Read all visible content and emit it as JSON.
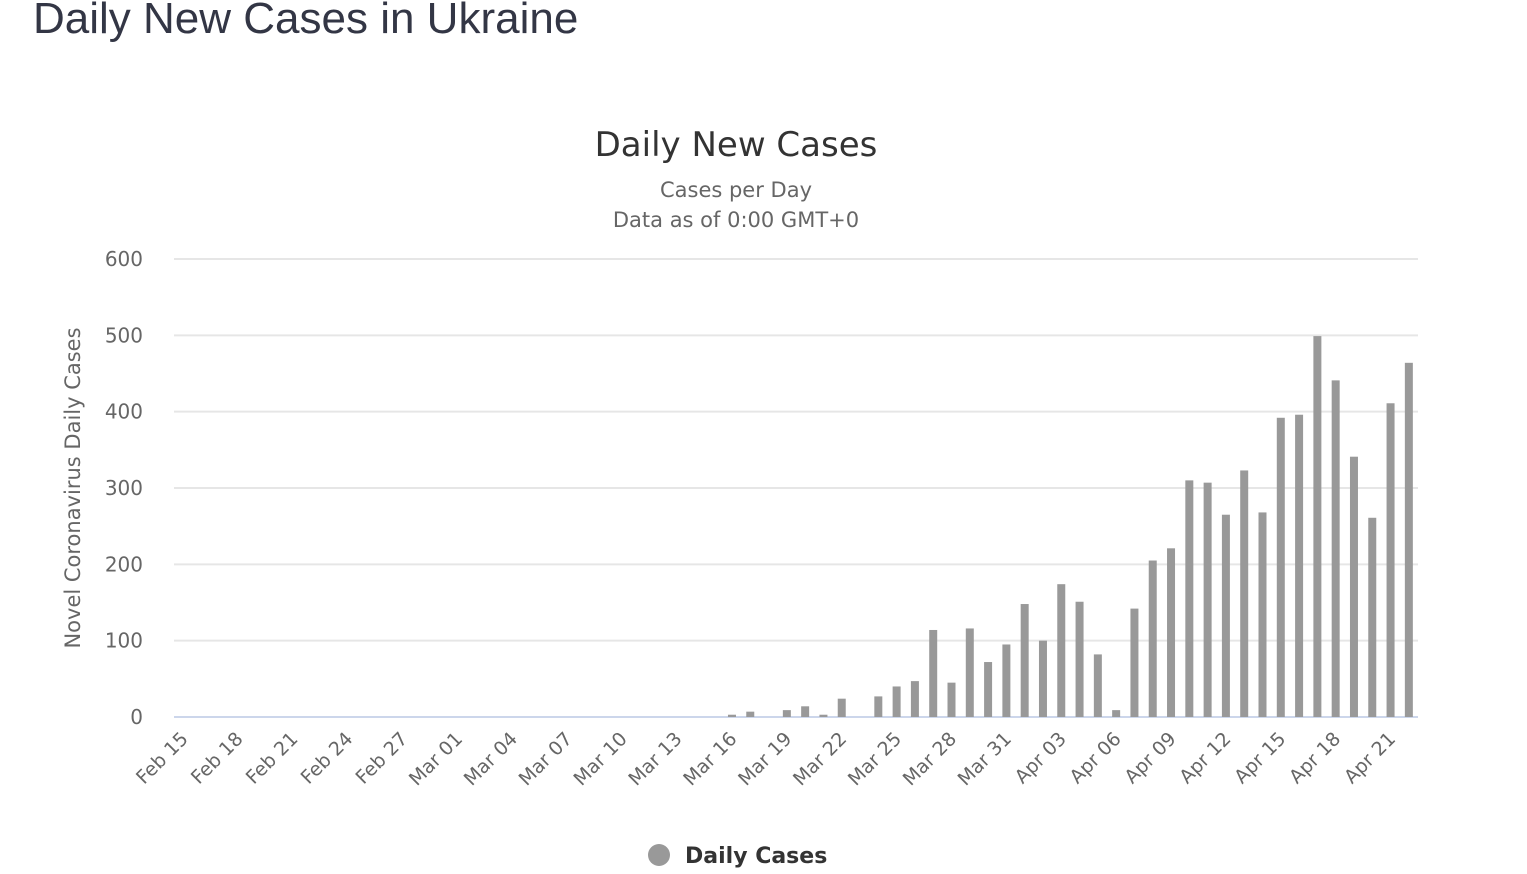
{
  "page_title": "Daily New Cases in Ukraine",
  "chart_data": {
    "type": "bar",
    "title": "Daily New Cases",
    "subtitle_lines": [
      "Cases per Day",
      "Data as of 0:00 GMT+0"
    ],
    "ylabel": "Novel Coronavirus Daily Cases",
    "xlabel": "",
    "ylim": [
      0,
      600
    ],
    "yticks": [
      "0",
      "100",
      "200",
      "300",
      "400",
      "500",
      "600"
    ],
    "grid": true,
    "legend": {
      "position": "bottom-center",
      "entries": [
        "Daily Cases"
      ]
    },
    "color": "#999999",
    "start_date": "Feb 15",
    "xtick_labels": [
      "Feb 15",
      "Feb 18",
      "Feb 21",
      "Feb 24",
      "Feb 27",
      "Mar 01",
      "Mar 04",
      "Mar 07",
      "Mar 10",
      "Mar 13",
      "Mar 16",
      "Mar 19",
      "Mar 22",
      "Mar 25",
      "Mar 28",
      "Mar 31",
      "Apr 03",
      "Apr 06",
      "Apr 09",
      "Apr 12",
      "Apr 15",
      "Apr 18",
      "Apr 21"
    ],
    "xtick_every": 3,
    "series": [
      {
        "name": "Daily Cases",
        "values": [
          0,
          0,
          0,
          0,
          0,
          0,
          0,
          0,
          0,
          0,
          0,
          0,
          0,
          0,
          0,
          0,
          0,
          0,
          0,
          0,
          0,
          0,
          0,
          0,
          0,
          0,
          0,
          0,
          0,
          0,
          3,
          7,
          0,
          9,
          14,
          3,
          24,
          0,
          27,
          40,
          47,
          114,
          45,
          116,
          72,
          95,
          148,
          100,
          174,
          151,
          82,
          9,
          142,
          205,
          221,
          310,
          307,
          265,
          323,
          268,
          392,
          396,
          499,
          441,
          341,
          261,
          411,
          464
        ]
      }
    ]
  }
}
